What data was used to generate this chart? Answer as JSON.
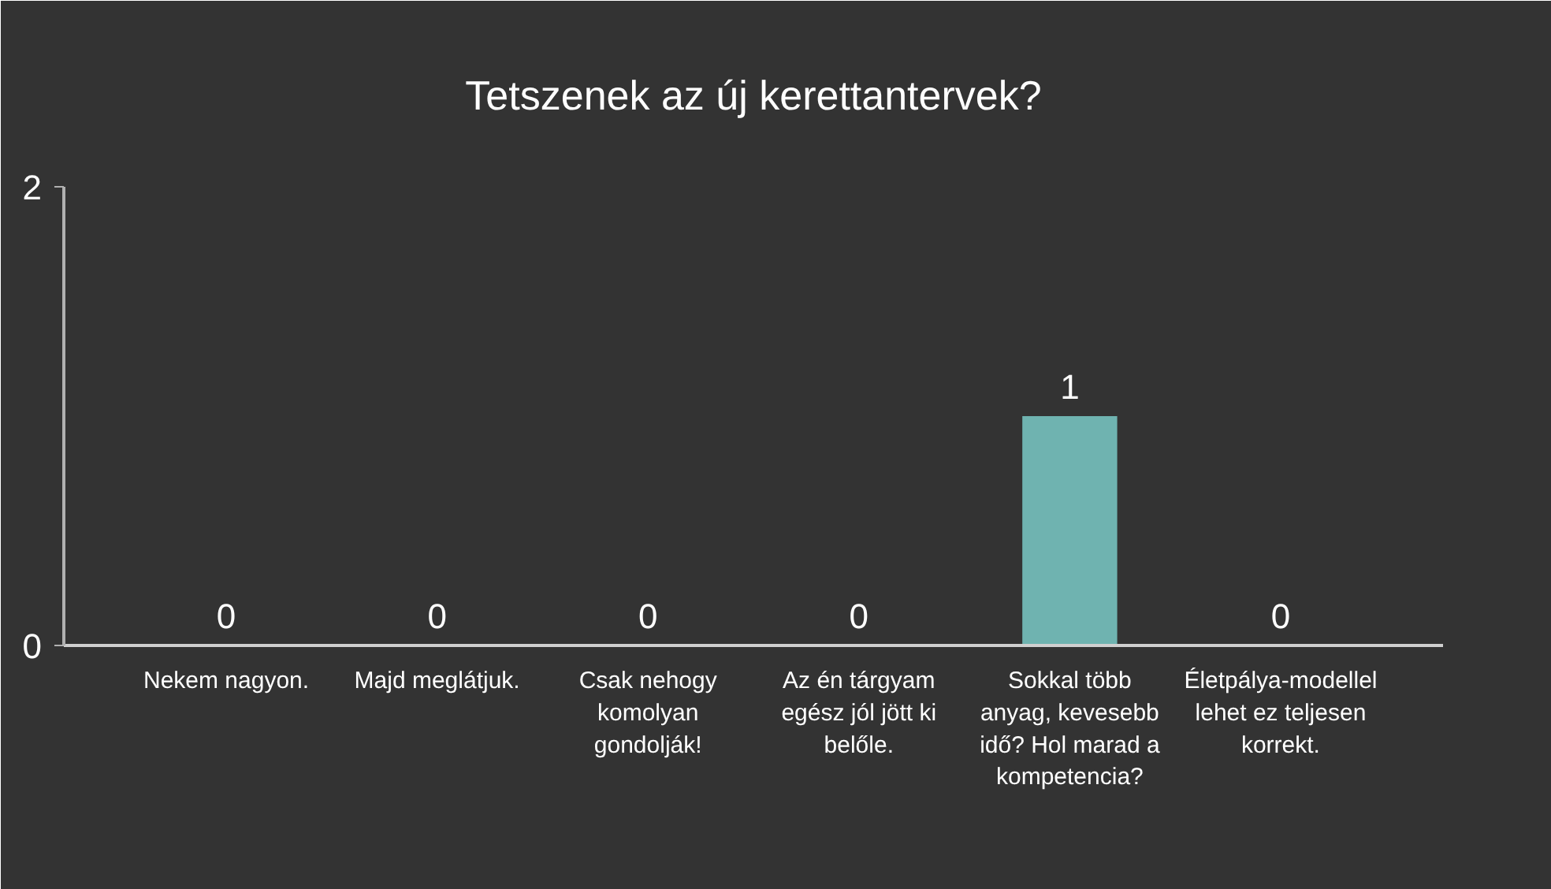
{
  "chart_data": {
    "type": "bar",
    "title": "Tetszenek az új kerettantervek?",
    "categories": [
      "Nekem nagyon.",
      "Majd meglátjuk.",
      "Csak nehogy komolyan gondolják!",
      "Az én tárgyam egész jól jött ki belőle.",
      "Sokkal több anyag, kevesebb idő? Hol marad a kompetencia?",
      "Életpálya-modellel lehet ez teljesen korrekt."
    ],
    "values": [
      0,
      0,
      0,
      0,
      1,
      0
    ],
    "color": "#6fb3b0",
    "ylim": [
      0,
      2
    ],
    "yticks": [
      0,
      2
    ],
    "grid": false,
    "data_labels": true
  }
}
